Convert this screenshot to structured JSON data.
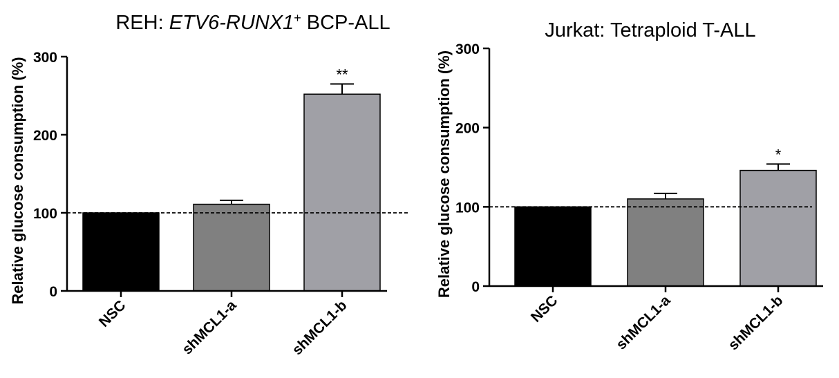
{
  "chart_data": [
    {
      "type": "bar",
      "title_parts": [
        {
          "text": "REH: ",
          "italic": false,
          "sup": false
        },
        {
          "text": "ETV6-RUNX1",
          "italic": true,
          "sup": false
        },
        {
          "text": "+",
          "italic": false,
          "sup": true
        },
        {
          "text": " BCP-ALL",
          "italic": false,
          "sup": false
        }
      ],
      "ylabel": "Relative glucose consumption (%)",
      "xlabel": "",
      "ylim": [
        0,
        300
      ],
      "yticks": [
        0,
        100,
        200,
        300
      ],
      "categories": [
        "NSC",
        "shMCL1-a",
        "shMCL1-b"
      ],
      "values": [
        100,
        111,
        252
      ],
      "errors": [
        0,
        5,
        13
      ],
      "significance": [
        "",
        "",
        "**"
      ],
      "colors": [
        "#000000",
        "#808080",
        "#a0a0a6"
      ],
      "reference_line": 100,
      "grid": false,
      "legend": "none"
    },
    {
      "type": "bar",
      "title_parts": [
        {
          "text": "Jurkat: Tetraploid T-ALL",
          "italic": false,
          "sup": false
        }
      ],
      "ylabel": "Relative glucose consumption (%)",
      "xlabel": "",
      "ylim": [
        0,
        300
      ],
      "yticks": [
        0,
        100,
        200,
        300
      ],
      "categories": [
        "NSC",
        "shMCL1-a",
        "shMCL1-b"
      ],
      "values": [
        100,
        110,
        146
      ],
      "errors": [
        0,
        7,
        8
      ],
      "significance": [
        "",
        "",
        "*"
      ],
      "colors": [
        "#000000",
        "#808080",
        "#a0a0a6"
      ],
      "reference_line": 100,
      "grid": false,
      "legend": "none"
    }
  ]
}
